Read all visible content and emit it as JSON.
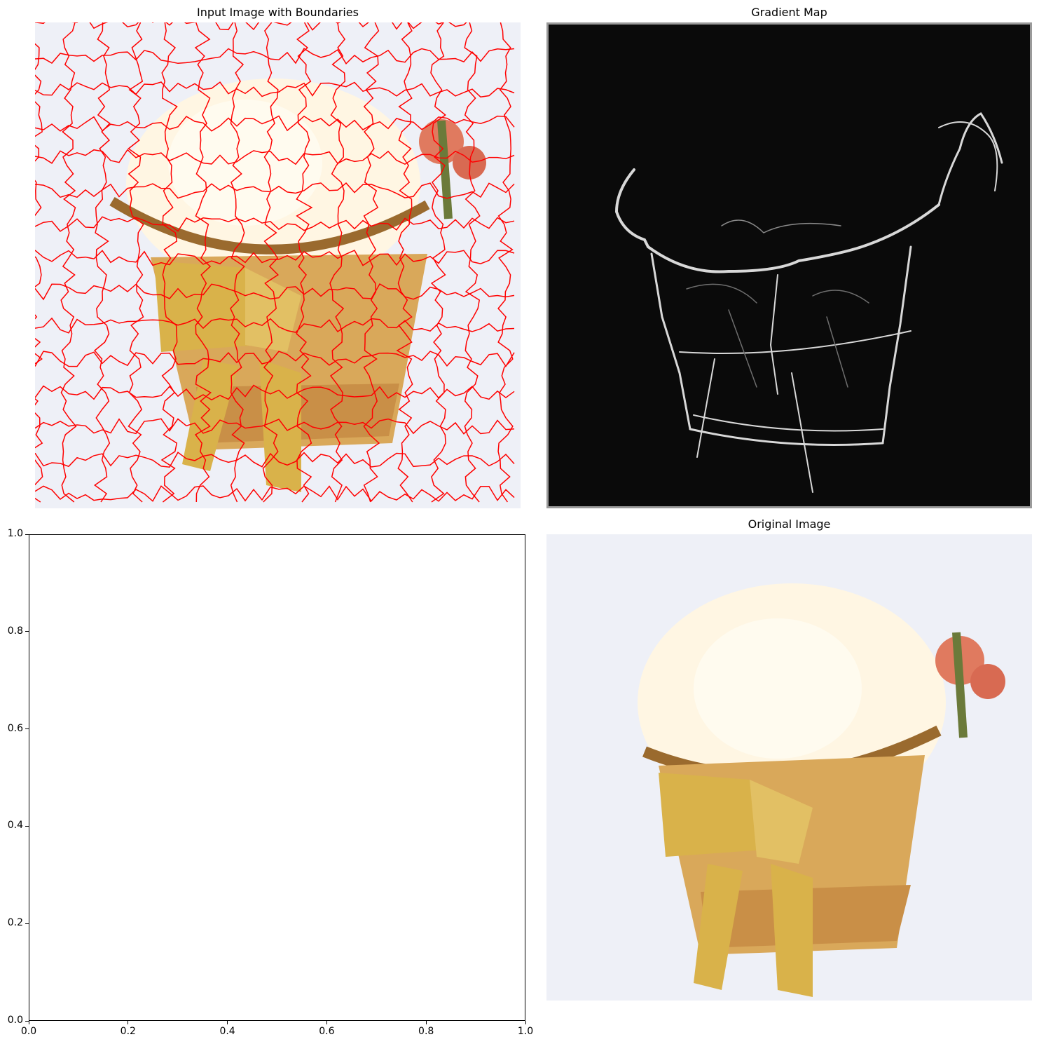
{
  "panels": {
    "segmentation": {
      "title": "Input Image with Boundaries",
      "boundary_color": "#ff0000"
    },
    "gradient": {
      "title": "Gradient Map",
      "background_color": "#0a0a0a",
      "edge_color": "#d8d8d8",
      "frame_color": "#9a9a9a"
    },
    "empty_axes": {
      "x_ticks": [
        "0.0",
        "0.2",
        "0.4",
        "0.6",
        "0.8",
        "1.0"
      ],
      "y_ticks": [
        "1.0",
        "0.8",
        "0.6",
        "0.4",
        "0.2",
        "0.0"
      ],
      "xlim": [
        0,
        1
      ],
      "ylim": [
        0,
        1
      ]
    },
    "original": {
      "title": "Original Image"
    }
  },
  "palette": {
    "background": "#eef0f7",
    "basket": "#d9a85a",
    "basket_dark": "#9a6a2e",
    "ribbon": "#d9b24a",
    "flower": "#fff6e3",
    "rose_accent": "#e07a5f",
    "leaf": "#6b7a3a"
  }
}
